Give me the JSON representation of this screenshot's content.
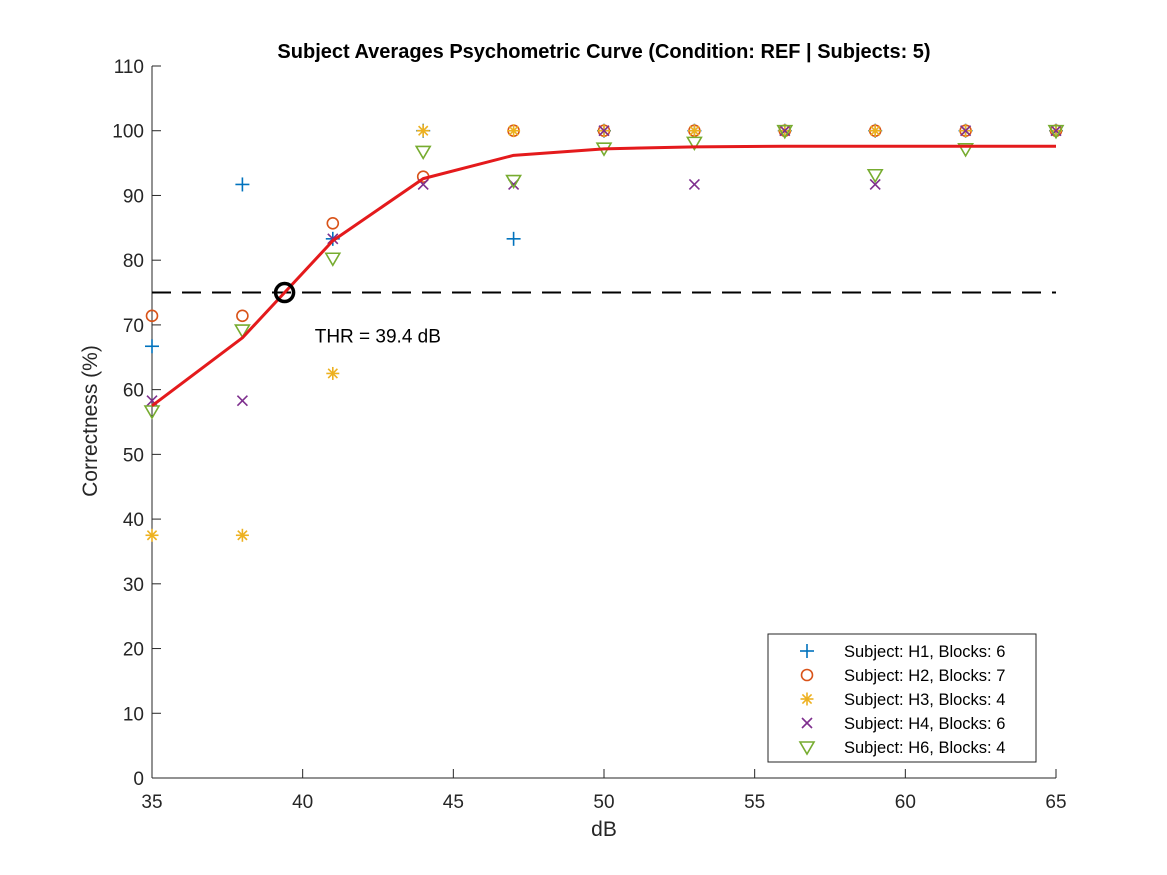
{
  "chart_data": {
    "type": "scatter",
    "title": "Subject Averages Psychometric Curve (Condition: REF | Subjects: 5)",
    "xlabel": "dB",
    "ylabel": "Correctness (%)",
    "xlim": [
      35,
      65
    ],
    "ylim": [
      0,
      110
    ],
    "xticks": [
      "35",
      "40",
      "45",
      "50",
      "55",
      "60",
      "65"
    ],
    "yticks": [
      "0",
      "10",
      "20",
      "30",
      "40",
      "50",
      "60",
      "70",
      "80",
      "90",
      "100",
      "110"
    ],
    "grid": false,
    "legend_position": "bottom-right",
    "series": [
      {
        "name": "Subject: H1, Blocks: 6",
        "marker": "plus",
        "color": "#0072BD",
        "x": [
          35,
          38,
          41,
          44,
          47,
          50,
          53,
          56,
          59,
          62,
          65
        ],
        "y": [
          66.7,
          91.7,
          83.3,
          100,
          83.3,
          100,
          100,
          100,
          100,
          100,
          100
        ]
      },
      {
        "name": "Subject: H2, Blocks: 7",
        "marker": "circle",
        "color": "#D95319",
        "x": [
          35,
          38,
          41,
          44,
          47,
          50,
          53,
          56,
          59,
          62,
          65
        ],
        "y": [
          71.4,
          71.4,
          85.7,
          92.9,
          100,
          100,
          100,
          100,
          100,
          100,
          100
        ]
      },
      {
        "name": "Subject: H3, Blocks: 4",
        "marker": "asterisk",
        "color": "#EDB120",
        "x": [
          35,
          38,
          41,
          44,
          47,
          50,
          53,
          56,
          59,
          62,
          65
        ],
        "y": [
          37.5,
          37.5,
          62.5,
          100,
          100,
          100,
          100,
          100,
          100,
          100,
          100
        ]
      },
      {
        "name": "Subject: H4, Blocks: 6",
        "marker": "x",
        "color": "#7E2F8E",
        "x": [
          35,
          38,
          41,
          44,
          47,
          50,
          53,
          56,
          59,
          62,
          65
        ],
        "y": [
          58.3,
          58.3,
          83.3,
          91.7,
          91.7,
          100,
          91.7,
          100,
          91.7,
          100,
          100
        ]
      },
      {
        "name": "Subject: H6, Blocks: 4",
        "marker": "triangle-down",
        "color": "#77AC30",
        "x": [
          35,
          38,
          41,
          44,
          47,
          50,
          53,
          56,
          59,
          62,
          65
        ],
        "y": [
          56.7,
          69.2,
          80.3,
          96.8,
          92.3,
          97.3,
          98.2,
          100,
          93.2,
          97.2,
          100
        ]
      }
    ],
    "fit_curve": {
      "color": "#E41A1C",
      "x": [
        35,
        38,
        41,
        44,
        47,
        50,
        53,
        56,
        59,
        62,
        65
      ],
      "y": [
        57.5,
        68,
        83,
        92.6,
        96.2,
        97.2,
        97.5,
        97.6,
        97.6,
        97.6,
        97.6
      ]
    },
    "threshold_line": {
      "y": 75,
      "style": "dashed",
      "color": "#000000"
    },
    "threshold_point": {
      "x": 39.4,
      "y": 75
    },
    "annotation": {
      "text": "THR = 39.4 dB",
      "x": 40.4,
      "y": 67.3
    }
  }
}
